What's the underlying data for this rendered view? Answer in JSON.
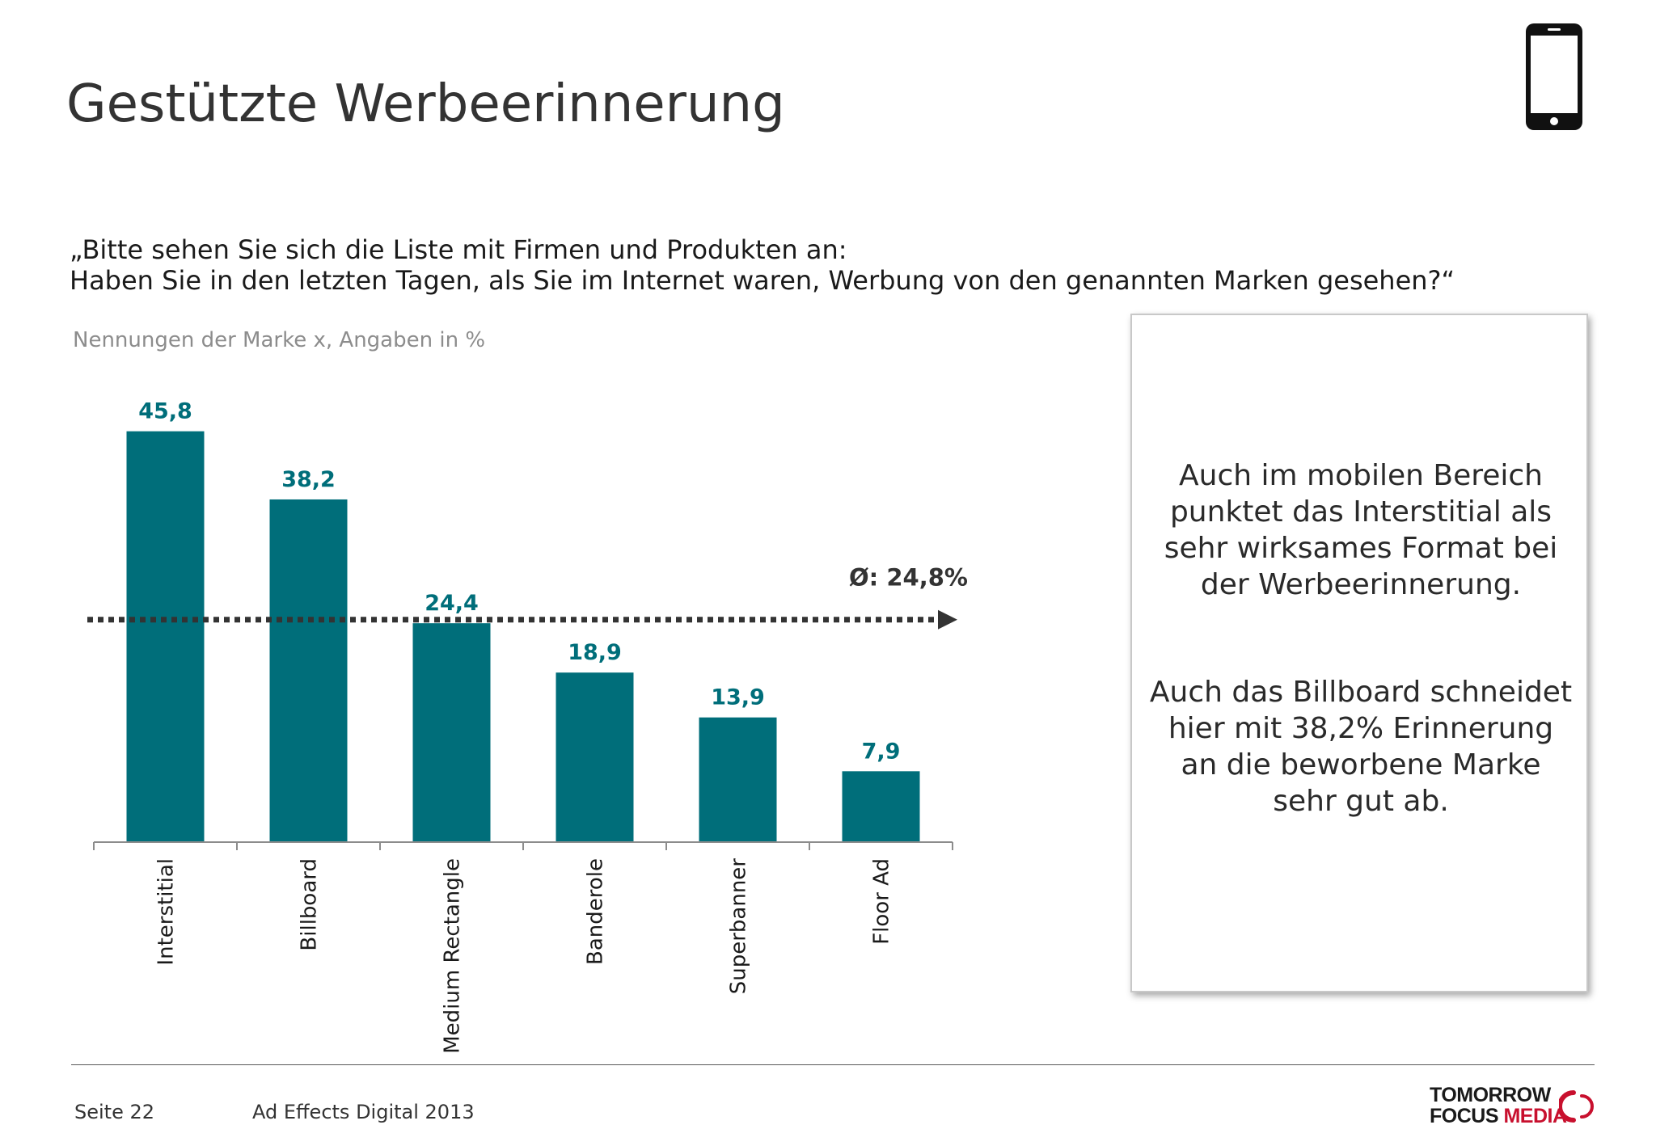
{
  "header": {
    "title": "Gestützte Werbeerinnerung",
    "device_icon": "smartphone-icon"
  },
  "question": {
    "line1": "„Bitte sehen Sie sich die Liste mit Firmen und Produkten an:",
    "line2": "Haben Sie in den letzten Tagen, als Sie im Internet waren, Werbung von den genannten Marken gesehen?“"
  },
  "chart_subtitle": "Nennungen der Marke x, Angaben in %",
  "chart_data": {
    "type": "bar",
    "categories": [
      "Interstitial",
      "Billboard",
      "Medium Rectangle",
      "Banderole",
      "Superbanner",
      "Floor Ad"
    ],
    "values": [
      45.8,
      38.2,
      24.4,
      18.9,
      13.9,
      7.9
    ],
    "data_labels": [
      "45,8",
      "38,2",
      "24,4",
      "18,9",
      "13,9",
      "7,9"
    ],
    "average": {
      "value": 24.8,
      "label": "Ø: 24,8%"
    },
    "ylim": [
      0,
      50
    ],
    "bar_color": "#006e7a",
    "average_line_color": "#333333"
  },
  "callout": {
    "paragraph1": "Auch im mobilen Bereich punktet das Interstitial als sehr wirksames Format bei der Werbeerinnerung.",
    "paragraph2": "Auch das Billboard schneidet hier mit 38,2% Erinnerung an die beworbene Marke sehr gut ab."
  },
  "footer": {
    "page": "Seite 22",
    "study": "Ad Effects Digital 2013",
    "logo_line1": "TOMORROW",
    "logo_line2_a": "FOCUS ",
    "logo_line2_b": "MEDIA",
    "logo_accent_color": "#c8102e"
  }
}
